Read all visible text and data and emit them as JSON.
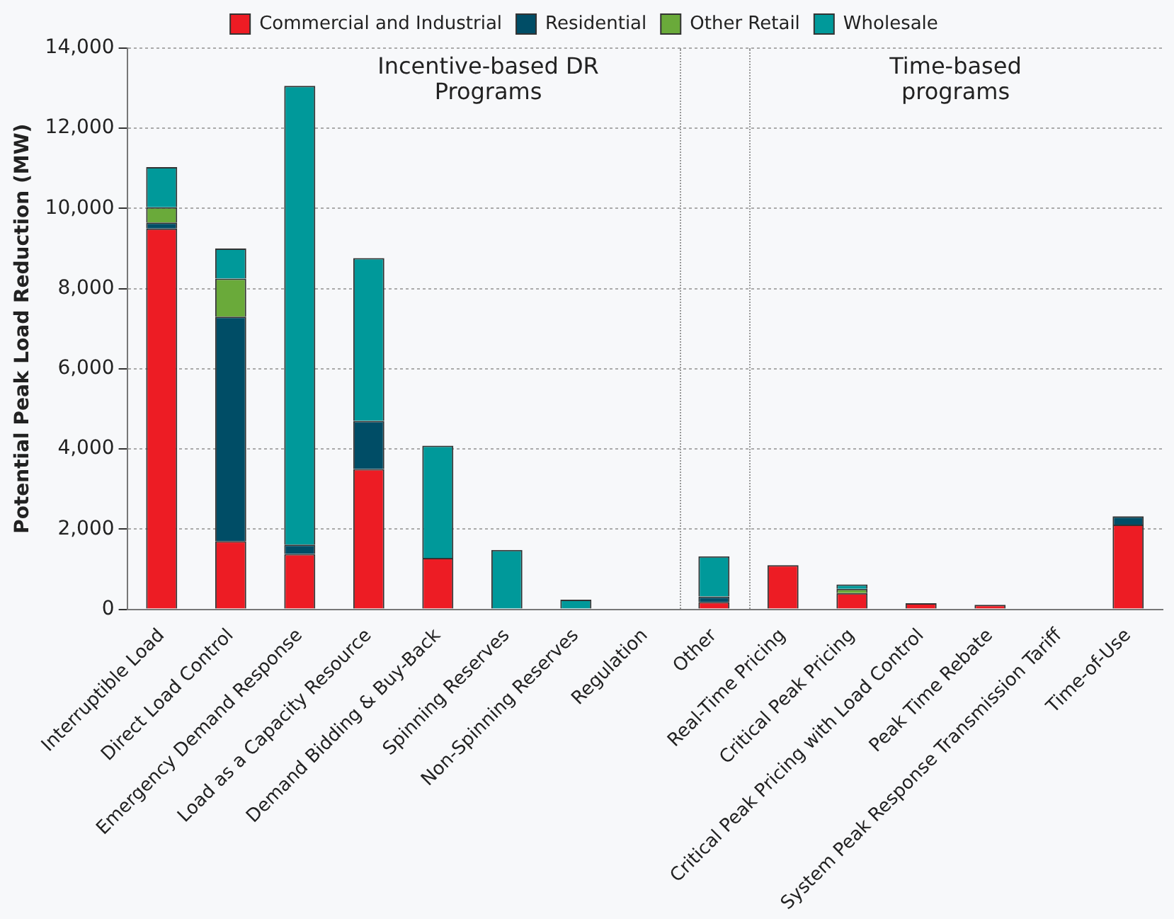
{
  "chart_data": {
    "type": "bar",
    "stacked": true,
    "ylabel": "Potential Peak Load Reduction (MW)",
    "categories": [
      "Interruptible Load",
      "Direct Load Control",
      "Emergency Demand Response",
      "Load as a Capacity Resource",
      "Demand Bidding & Buy-Back",
      "Spinning Reserves",
      "Non-Spinning Reserves",
      "Regulation",
      "Other",
      "Real-Time Pricing",
      "Critical Peak Pricing",
      "Critical Peak Pricing with Load Control",
      "Peak Time Rebate",
      "System Peak Response Transmission Tariff",
      "Time-of-Use"
    ],
    "series": [
      {
        "name": "Commercial and Industrial",
        "color": "#ed1c24",
        "values": [
          9500,
          1700,
          1380,
          3500,
          1280,
          0,
          0,
          0,
          180,
          1100,
          400,
          150,
          110,
          0,
          2110
        ]
      },
      {
        "name": "Residential",
        "color": "#004d66",
        "values": [
          150,
          5600,
          230,
          1200,
          0,
          0,
          0,
          0,
          140,
          0,
          0,
          0,
          0,
          0,
          210
        ]
      },
      {
        "name": "Other Retail",
        "color": "#6aaa3a",
        "values": [
          380,
          950,
          0,
          0,
          0,
          0,
          0,
          0,
          0,
          0,
          110,
          0,
          0,
          0,
          0
        ]
      },
      {
        "name": "Wholesale",
        "color": "#00999a",
        "values": [
          1000,
          750,
          11450,
          4060,
          2800,
          1480,
          240,
          0,
          1000,
          0,
          110,
          0,
          0,
          0,
          0
        ]
      }
    ],
    "ylim": [
      0,
      14000
    ],
    "yticks": [
      {
        "value": 0,
        "label": "0"
      },
      {
        "value": 2000,
        "label": "2,000"
      },
      {
        "value": 4000,
        "label": "4,000"
      },
      {
        "value": 6000,
        "label": "6,000"
      },
      {
        "value": 8000,
        "label": "8,000"
      },
      {
        "value": 10000,
        "label": "10,000"
      },
      {
        "value": 12000,
        "label": "12,000"
      },
      {
        "value": 14000,
        "label": "14,000"
      }
    ],
    "grid": "y",
    "legend": "top",
    "annotations": [
      "Incentive-based DR\nPrograms",
      "Time-based\nprograms"
    ]
  }
}
